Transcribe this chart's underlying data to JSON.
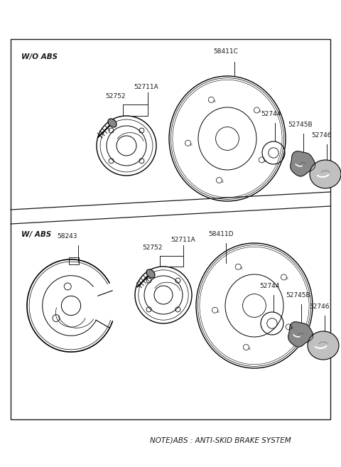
{
  "bg_color": "#ffffff",
  "line_color": "#1a1a1a",
  "note_text": "NOTE)ABS : ANTI-SKID BRAKE SYSTEM",
  "wo_abs_label": "W/O ABS",
  "w_abs_label": "W/ ABS",
  "figsize": [
    4.8,
    6.57
  ],
  "dpi": 100
}
